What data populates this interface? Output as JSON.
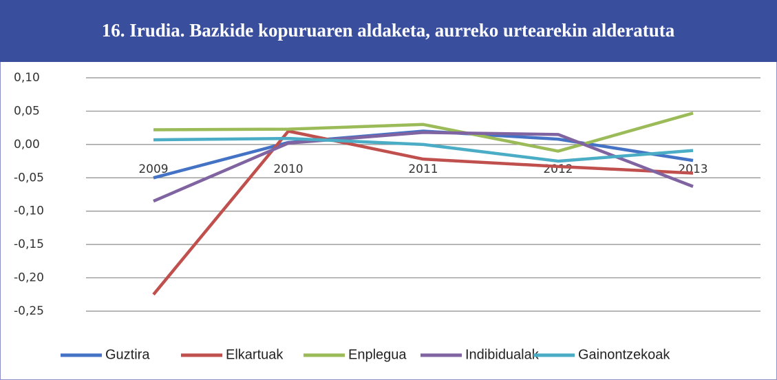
{
  "chart_data": {
    "type": "line",
    "title": "16. Irudia. Bazkide kopuruaren aldaketa, aurreko urtearekin alderatuta",
    "categories": [
      "2009",
      "2010",
      "2011",
      "2012",
      "2013"
    ],
    "series": [
      {
        "name": "Guztira",
        "color": "#4472c4",
        "values": [
          -0.05,
          0.003,
          0.02,
          0.008,
          -0.024
        ]
      },
      {
        "name": "Elkartuak",
        "color": "#c0504d",
        "values": [
          -0.225,
          0.02,
          -0.022,
          -0.033,
          -0.043
        ]
      },
      {
        "name": "Enplegua",
        "color": "#9bbb59",
        "values": [
          0.022,
          0.023,
          0.03,
          -0.01,
          0.047
        ]
      },
      {
        "name": "Indibidualak",
        "color": "#8064a2",
        "values": [
          -0.085,
          0.002,
          0.018,
          0.015,
          -0.063
        ]
      },
      {
        "name": "Gainontzekoak",
        "color": "#4bacc6",
        "values": [
          0.007,
          0.009,
          0.0,
          -0.025,
          -0.009
        ]
      }
    ],
    "ylim": [
      -0.25,
      0.1
    ],
    "yticks": [
      {
        "value": 0.1,
        "label": "0,10"
      },
      {
        "value": 0.05,
        "label": "0,05"
      },
      {
        "value": 0,
        "label": "0,00"
      },
      {
        "value": -0.05,
        "label": "-0,05"
      },
      {
        "value": -0.1,
        "label": "-0,10"
      },
      {
        "value": -0.15,
        "label": "-0,15"
      },
      {
        "value": -0.2,
        "label": "-0,20"
      },
      {
        "value": -0.25,
        "label": "-0,25"
      }
    ],
    "grid": true,
    "legend": "bottom"
  }
}
